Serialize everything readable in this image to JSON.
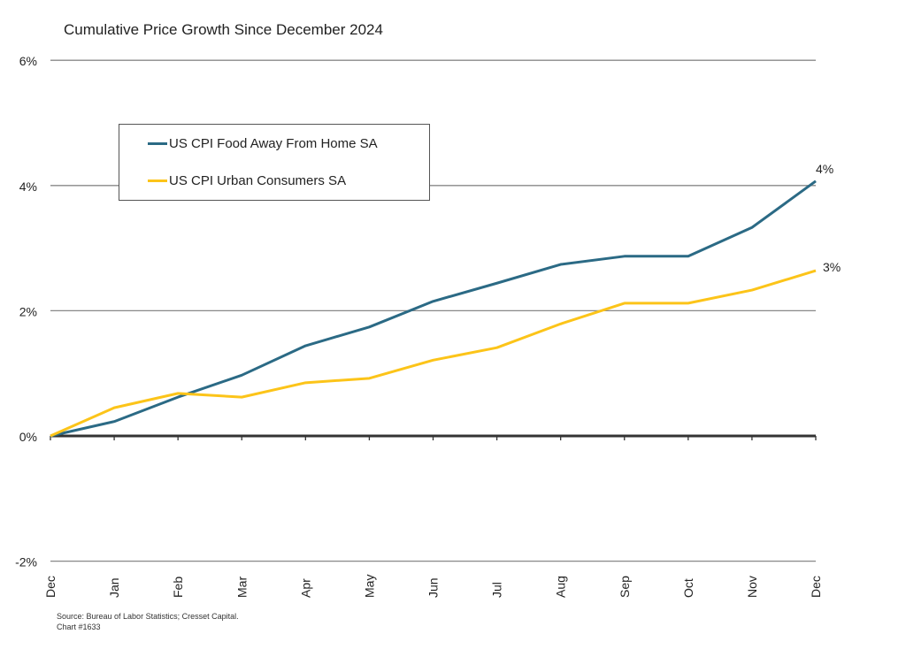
{
  "chart_data": {
    "type": "line",
    "title": "Cumulative Price Growth Since December 2024",
    "categories": [
      "Dec",
      "Jan",
      "Feb",
      "Mar",
      "Apr",
      "May",
      "Jun",
      "Jul",
      "Aug",
      "Sep",
      "Oct",
      "Nov",
      "Dec"
    ],
    "ylim": [
      -2,
      6
    ],
    "yticks": [
      -2,
      0,
      2,
      4,
      6
    ],
    "ytick_labels": [
      "-2%",
      "0%",
      "2%",
      "4%",
      "6%"
    ],
    "grid": true,
    "legend": "top-left",
    "series": [
      {
        "name": "US CPI Food Away From Home SA",
        "color": "#2b6a85",
        "values": [
          0,
          0.23,
          0.62,
          0.97,
          1.44,
          1.74,
          2.15,
          2.44,
          2.74,
          2.87,
          2.87,
          3.33,
          4.07
        ],
        "end_label": "4%"
      },
      {
        "name": "US CPI Urban Consumers SA",
        "color": "#fcc419",
        "values": [
          0,
          0.45,
          0.68,
          0.62,
          0.85,
          0.92,
          1.21,
          1.41,
          1.79,
          2.12,
          2.12,
          2.33,
          2.64
        ],
        "end_label": "3%"
      }
    ]
  },
  "source": "Source: Bureau of Labor Statistics; Cresset Capital.",
  "chart_number": "Chart #1633"
}
